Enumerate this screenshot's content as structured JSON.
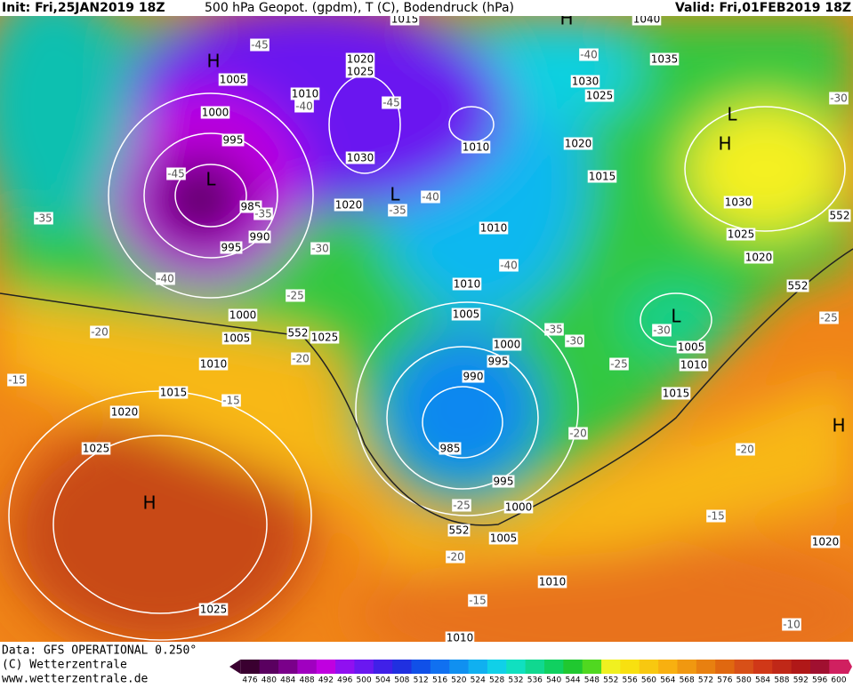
{
  "header": {
    "init": "Init: Fri,25JAN2019 18Z",
    "title": "500 hPa Geopot. (gpdm), T (C), Bodendruck (hPa)",
    "valid": "Valid: Fri,01FEB2019 18Z"
  },
  "footer": {
    "data": "Data: GFS OPERATIONAL 0.250°",
    "copyright": "(C) Wetterzentrale",
    "url": "www.wetterzentrale.de"
  },
  "scale": {
    "levels": [
      476,
      480,
      484,
      488,
      492,
      496,
      500,
      504,
      508,
      512,
      516,
      520,
      524,
      528,
      532,
      536,
      540,
      544,
      548,
      552,
      556,
      560,
      564,
      568,
      572,
      576,
      580,
      584,
      588,
      592,
      596,
      600
    ],
    "colors": [
      "#3a0030",
      "#5a0060",
      "#7a008a",
      "#a000c0",
      "#c000e0",
      "#9010f0",
      "#6a18f0",
      "#4020e8",
      "#2030e0",
      "#1050e8",
      "#1070f0",
      "#1090f0",
      "#10b0f0",
      "#10d0e8",
      "#10e0c0",
      "#10d890",
      "#10d060",
      "#20c830",
      "#50d820",
      "#f0f020",
      "#f8e010",
      "#f8c810",
      "#f8b010",
      "#f09810",
      "#e88010",
      "#e06810",
      "#d85018",
      "#d03818",
      "#c02818",
      "#b01818",
      "#a01030",
      "#d02060"
    ]
  },
  "map": {
    "isobars": [
      1005,
      1000,
      995,
      985,
      990,
      995,
      1000,
      1005,
      1010,
      1015,
      1020,
      1025,
      1025,
      1020,
      1030,
      1010,
      1020,
      1025,
      1015,
      1010,
      1010,
      1010,
      1005,
      1000,
      995,
      990,
      985,
      995,
      1000,
      1005,
      1010,
      1010,
      1025,
      1020,
      1015,
      1025,
      1030,
      1035,
      1040,
      1030,
      1025,
      1020,
      1005,
      1010,
      1015,
      1020
    ],
    "temperatures": [
      -45,
      -40,
      -45,
      -45,
      -35,
      -40,
      -35,
      -35,
      -40,
      -30,
      -25,
      -20,
      -20,
      -15,
      -15,
      -40,
      -40,
      -35,
      -30,
      -30,
      -25,
      -20,
      -20,
      -15,
      -25,
      -20,
      -15,
      -10,
      -25,
      -30
    ],
    "geopotential": [
      552,
      552,
      552,
      552
    ],
    "centers": [
      "H",
      "L",
      "L",
      "H",
      "H",
      "L",
      "L",
      "H",
      "H"
    ]
  }
}
